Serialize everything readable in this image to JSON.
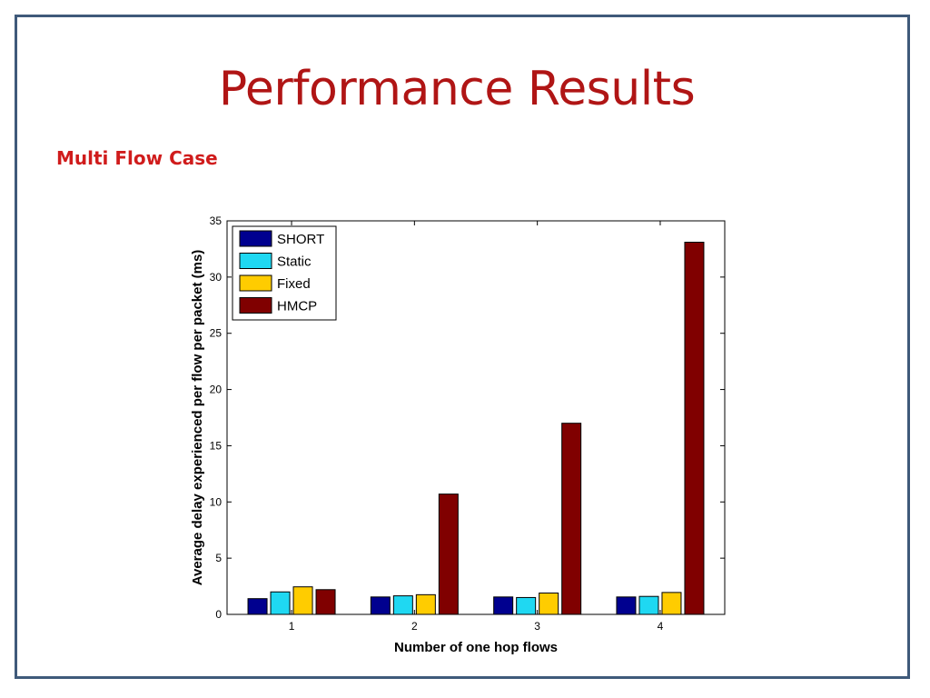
{
  "slide": {
    "title": "Performance Results",
    "subtitle": "Multi Flow Case"
  },
  "colors": {
    "frame": "#3f5a7a",
    "title": "#b01515",
    "subtitle": "#d01c1c"
  },
  "chart_data": {
    "type": "bar",
    "categories": [
      "1",
      "2",
      "3",
      "4"
    ],
    "series": [
      {
        "name": "SHORT",
        "color": "#00008f",
        "values": [
          1.4,
          1.55,
          1.55,
          1.55
        ]
      },
      {
        "name": "Static",
        "color": "#1fd8f2",
        "values": [
          2.0,
          1.65,
          1.5,
          1.6
        ]
      },
      {
        "name": "Fixed",
        "color": "#ffcc00",
        "values": [
          2.45,
          1.75,
          1.9,
          1.95
        ]
      },
      {
        "name": "HMCP",
        "color": "#800000",
        "values": [
          2.2,
          10.7,
          17.0,
          33.1
        ]
      }
    ],
    "xlabel": "Number of one hop flows",
    "ylabel": "Average delay experienced per flow per packet (ms)",
    "ylim": [
      0,
      35
    ],
    "yticks": [
      0,
      5,
      10,
      15,
      20,
      25,
      30,
      35
    ],
    "grid": false,
    "legend_position": "top-left"
  }
}
